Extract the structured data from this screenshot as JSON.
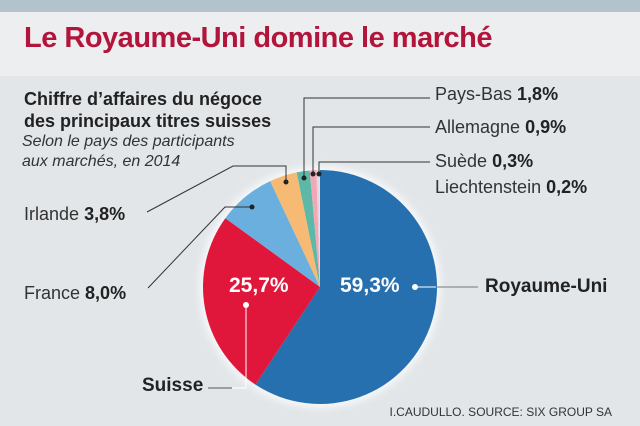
{
  "title": "Le Royaume-Uni domine le marché",
  "subtitle_bold": [
    "Chiffre d’affaires du négoce",
    "des principaux titres suisses"
  ],
  "subtitle_italic": [
    "Selon le pays des participants",
    "aux marchés, en 2014"
  ],
  "source": "I.CAUDULLO. SOURCE: SIX GROUP SA",
  "chart_data": {
    "type": "pie",
    "title": "Le Royaume-Uni domine le marché",
    "slices": [
      {
        "name": "Royaume-Uni",
        "value": 59.3,
        "label": "59,3%",
        "color": "#2670b0"
      },
      {
        "name": "Suisse",
        "value": 25.7,
        "label": "25,7%",
        "color": "#e0173b"
      },
      {
        "name": "France",
        "value": 8.0,
        "label": "8,0%",
        "color": "#6aafdd"
      },
      {
        "name": "Irlande",
        "value": 3.8,
        "label": "3,8%",
        "color": "#f6ba74"
      },
      {
        "name": "Pays-Bas",
        "value": 1.8,
        "label": "1,8%",
        "color": "#5db8a8"
      },
      {
        "name": "Allemagne",
        "value": 0.9,
        "label": "0,9%",
        "color": "#f0a7b6"
      },
      {
        "name": "Suède",
        "value": 0.3,
        "label": "0,3%",
        "color": "#e9d0d8"
      },
      {
        "name": "Liechtenstein",
        "value": 0.2,
        "label": "0,2%",
        "color": "#d8e4ee"
      }
    ],
    "start": "top",
    "direction": "counterclockwise-from-top for small slices, Royaume-Uni clockwise"
  }
}
